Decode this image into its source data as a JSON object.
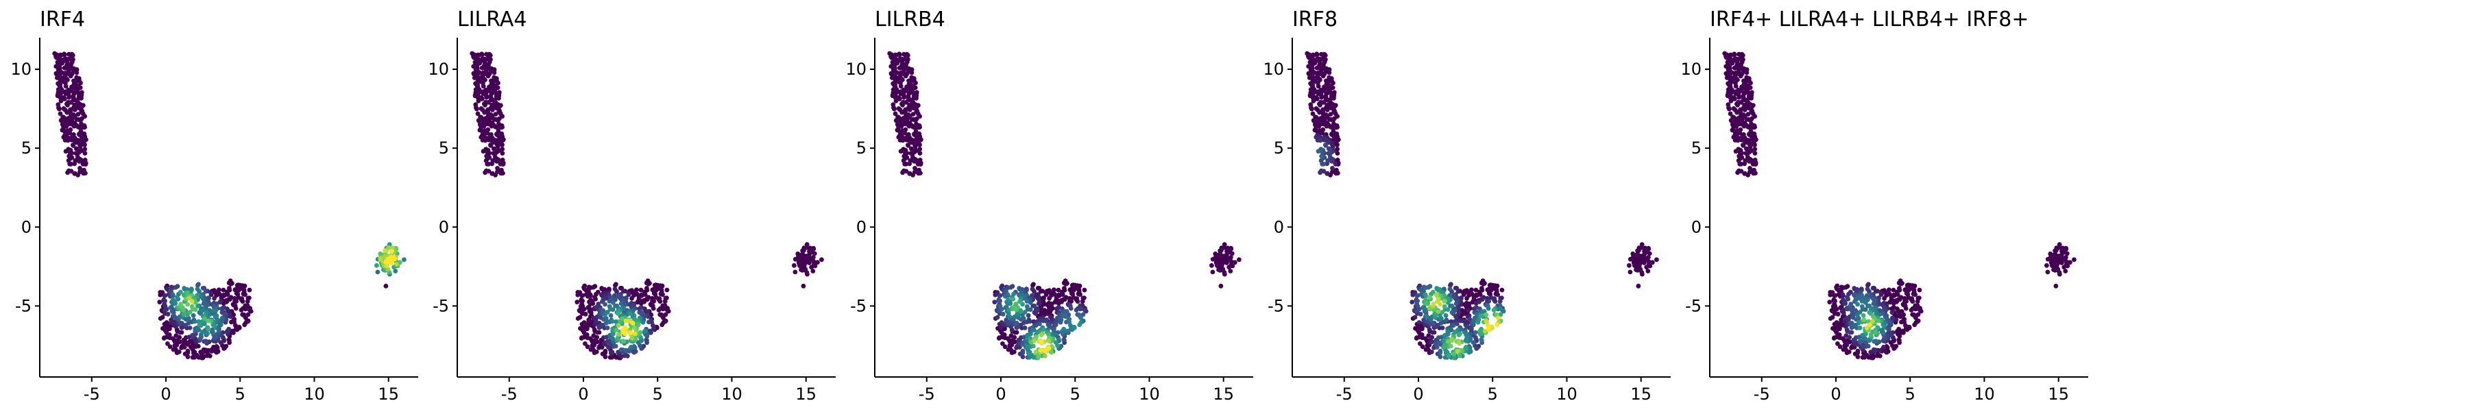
{
  "figure": {
    "colormap": [
      "#440154",
      "#3b528b",
      "#21918c",
      "#5ec962",
      "#fde725"
    ]
  },
  "chart_data": [
    {
      "type": "scatter",
      "title": "IRF4",
      "xlim": [
        -8.5,
        17
      ],
      "ylim": [
        -9.5,
        12
      ],
      "xticks": [
        -5,
        0,
        5,
        10,
        15
      ],
      "xtick_labels": [
        "-5",
        "0",
        "5",
        "10",
        "15"
      ],
      "yticks": [
        -5,
        0,
        5,
        10
      ],
      "ytick_labels": [
        "-5",
        "0",
        "5",
        "10"
      ],
      "grid": false,
      "legend": "none",
      "expression_hotspots": {
        "cluster_top_left": [],
        "cluster_bottom": [
          [
            1.5,
            -4.8,
            0.8
          ],
          [
            2.8,
            -6.0,
            0.6
          ]
        ],
        "cluster_right": [
          [
            15.1,
            -2.0,
            1.0
          ]
        ]
      }
    },
    {
      "type": "scatter",
      "title": "LILRA4",
      "xlim": [
        -8.5,
        17
      ],
      "ylim": [
        -9.5,
        12
      ],
      "xticks": [
        -5,
        0,
        5,
        10,
        15
      ],
      "xtick_labels": [
        "-5",
        "0",
        "5",
        "10",
        "15"
      ],
      "yticks": [
        -5,
        0,
        5,
        10
      ],
      "ytick_labels": [
        "-5",
        "0",
        "5",
        "10"
      ],
      "grid": false,
      "legend": "none",
      "expression_hotspots": {
        "cluster_top_left": [],
        "cluster_bottom": [
          [
            3.0,
            -6.5,
            1.0
          ],
          [
            2.2,
            -5.5,
            0.5
          ]
        ],
        "cluster_right": []
      }
    },
    {
      "type": "scatter",
      "title": "LILRB4",
      "xlim": [
        -8.5,
        17
      ],
      "ylim": [
        -9.5,
        12
      ],
      "xticks": [
        -5,
        0,
        5,
        10,
        15
      ],
      "xtick_labels": [
        "-5",
        "0",
        "5",
        "10",
        "15"
      ],
      "yticks": [
        -5,
        0,
        5,
        10
      ],
      "ytick_labels": [
        "-5",
        "0",
        "5",
        "10"
      ],
      "grid": false,
      "legend": "none",
      "expression_hotspots": {
        "cluster_top_left": [],
        "cluster_bottom": [
          [
            2.8,
            -7.5,
            1.0
          ],
          [
            1.0,
            -5.0,
            0.6
          ],
          [
            4.8,
            -6.2,
            0.5
          ]
        ],
        "cluster_right": []
      }
    },
    {
      "type": "scatter",
      "title": "IRF8",
      "xlim": [
        -8.5,
        17
      ],
      "ylim": [
        -9.5,
        12
      ],
      "xticks": [
        -5,
        0,
        5,
        10,
        15
      ],
      "xtick_labels": [
        "-5",
        "0",
        "5",
        "10",
        "15"
      ],
      "yticks": [
        -5,
        0,
        5,
        10
      ],
      "ytick_labels": [
        "-5",
        "0",
        "5",
        "10"
      ],
      "grid": false,
      "legend": "none",
      "expression_hotspots": {
        "cluster_top_left": [
          [
            -6.8,
            4.5,
            0.3
          ]
        ],
        "cluster_bottom": [
          [
            5.0,
            -6.2,
            1.0
          ],
          [
            1.2,
            -4.8,
            0.85
          ],
          [
            2.5,
            -7.5,
            0.8
          ]
        ],
        "cluster_right": []
      }
    },
    {
      "type": "scatter",
      "title": "IRF4+ LILRA4+ LILRB4+ IRF8+",
      "xlim": [
        -8.5,
        17
      ],
      "ylim": [
        -9.5,
        12
      ],
      "xticks": [
        -5,
        0,
        5,
        10,
        15
      ],
      "xtick_labels": [
        "-5",
        "0",
        "5",
        "10",
        "15"
      ],
      "yticks": [
        -5,
        0,
        5,
        10
      ],
      "ytick_labels": [
        "-5",
        "0",
        "5",
        "10"
      ],
      "grid": false,
      "legend": "none",
      "expression_hotspots": {
        "cluster_top_left": [],
        "cluster_bottom": [
          [
            2.3,
            -6.2,
            0.8
          ],
          [
            1.8,
            -5.0,
            0.4
          ]
        ],
        "cluster_right": []
      }
    }
  ]
}
